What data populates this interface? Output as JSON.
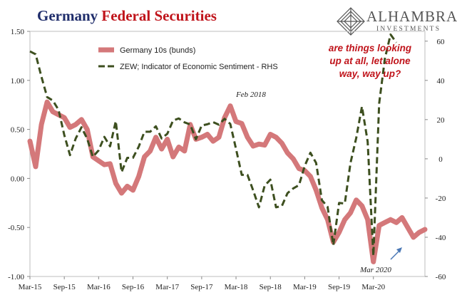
{
  "title": {
    "part1": "Germany",
    "part2": "Federal Securities"
  },
  "logo": {
    "name": "ALHAMBRA",
    "sub": "INVESTMENTS"
  },
  "colors": {
    "bunds": "#d4787a",
    "zew": "#3d4f1f",
    "title_navy": "#1f2d6b",
    "title_red": "#c0141b",
    "annotation_red": "#c0141b",
    "arrow_blue": "#4a78b5"
  },
  "annotations": {
    "feb2018": "Feb 2018",
    "mar2020": "Mar 2020",
    "question": [
      "are things looking",
      "up at all, let alone",
      "way, way up?"
    ]
  },
  "chart_data": {
    "type": "line",
    "title": "Germany Federal Securities",
    "x_tick_labels": [
      "Mar-15",
      "Sep-15",
      "Mar-16",
      "Sep-16",
      "Mar-17",
      "Sep-17",
      "Mar-18",
      "Sep-18",
      "Mar-19",
      "Sep-19",
      "Mar-20"
    ],
    "x_range": [
      "2015-03",
      "2020-12"
    ],
    "y_left": {
      "ylim": [
        -1.0,
        1.5
      ],
      "ticks": [
        "1.50",
        "1.00",
        "0.50",
        "0.00",
        "-0.50",
        "-1.00"
      ]
    },
    "y_right": {
      "ylim": [
        -60,
        65
      ],
      "ticks": [
        "60",
        "40",
        "20",
        "0",
        "-20",
        "-40",
        "-60"
      ]
    },
    "legend_placement": "top-left",
    "grid": false,
    "series": [
      {
        "name": "Germany 10s (bunds)",
        "axis": "left",
        "style": "solid-thick",
        "points": [
          [
            "2015-03",
            0.38
          ],
          [
            "2015-04",
            0.12
          ],
          [
            "2015-05",
            0.55
          ],
          [
            "2015-06",
            0.78
          ],
          [
            "2015-07",
            0.68
          ],
          [
            "2015-08",
            0.65
          ],
          [
            "2015-09",
            0.62
          ],
          [
            "2015-10",
            0.52
          ],
          [
            "2015-11",
            0.55
          ],
          [
            "2015-12",
            0.6
          ],
          [
            "2016-01",
            0.5
          ],
          [
            "2016-02",
            0.22
          ],
          [
            "2016-03",
            0.18
          ],
          [
            "2016-04",
            0.14
          ],
          [
            "2016-05",
            0.15
          ],
          [
            "2016-06",
            -0.05
          ],
          [
            "2016-07",
            -0.15
          ],
          [
            "2016-08",
            -0.08
          ],
          [
            "2016-09",
            -0.12
          ],
          [
            "2016-10",
            0.02
          ],
          [
            "2016-11",
            0.22
          ],
          [
            "2016-12",
            0.28
          ],
          [
            "2017-01",
            0.42
          ],
          [
            "2017-02",
            0.3
          ],
          [
            "2017-03",
            0.4
          ],
          [
            "2017-04",
            0.22
          ],
          [
            "2017-05",
            0.32
          ],
          [
            "2017-06",
            0.28
          ],
          [
            "2017-07",
            0.55
          ],
          [
            "2017-08",
            0.4
          ],
          [
            "2017-09",
            0.42
          ],
          [
            "2017-10",
            0.45
          ],
          [
            "2017-11",
            0.38
          ],
          [
            "2017-12",
            0.42
          ],
          [
            "2018-01",
            0.62
          ],
          [
            "2018-02",
            0.74
          ],
          [
            "2018-03",
            0.58
          ],
          [
            "2018-04",
            0.56
          ],
          [
            "2018-05",
            0.42
          ],
          [
            "2018-06",
            0.33
          ],
          [
            "2018-07",
            0.35
          ],
          [
            "2018-08",
            0.34
          ],
          [
            "2018-09",
            0.45
          ],
          [
            "2018-10",
            0.42
          ],
          [
            "2018-11",
            0.36
          ],
          [
            "2018-12",
            0.26
          ],
          [
            "2019-01",
            0.2
          ],
          [
            "2019-02",
            0.1
          ],
          [
            "2019-03",
            0.08
          ],
          [
            "2019-04",
            0.02
          ],
          [
            "2019-05",
            -0.12
          ],
          [
            "2019-06",
            -0.3
          ],
          [
            "2019-07",
            -0.42
          ],
          [
            "2019-08",
            -0.65
          ],
          [
            "2019-09",
            -0.55
          ],
          [
            "2019-10",
            -0.42
          ],
          [
            "2019-11",
            -0.35
          ],
          [
            "2019-12",
            -0.22
          ],
          [
            "2020-01",
            -0.28
          ],
          [
            "2020-02",
            -0.42
          ],
          [
            "2020-03",
            -0.85
          ],
          [
            "2020-04",
            -0.48
          ],
          [
            "2020-05",
            -0.45
          ],
          [
            "2020-06",
            -0.42
          ],
          [
            "2020-07",
            -0.45
          ],
          [
            "2020-08",
            -0.4
          ],
          [
            "2020-09",
            -0.5
          ],
          [
            "2020-10",
            -0.6
          ],
          [
            "2020-11",
            -0.55
          ],
          [
            "2020-12",
            -0.52
          ]
        ]
      },
      {
        "name": "ZEW; Indicator of Economic Sentiment - RHS",
        "axis": "right",
        "style": "dashed",
        "points": [
          [
            "2015-03",
            54.8
          ],
          [
            "2015-04",
            53.3
          ],
          [
            "2015-05",
            41.9
          ],
          [
            "2015-06",
            31.5
          ],
          [
            "2015-07",
            29.7
          ],
          [
            "2015-08",
            25.0
          ],
          [
            "2015-09",
            12.1
          ],
          [
            "2015-10",
            1.9
          ],
          [
            "2015-11",
            10.4
          ],
          [
            "2015-12",
            16.1
          ],
          [
            "2016-01",
            10.2
          ],
          [
            "2016-02",
            1.0
          ],
          [
            "2016-03",
            4.3
          ],
          [
            "2016-04",
            11.2
          ],
          [
            "2016-05",
            6.4
          ],
          [
            "2016-06",
            19.2
          ],
          [
            "2016-07",
            -6.8
          ],
          [
            "2016-08",
            0.5
          ],
          [
            "2016-09",
            0.5
          ],
          [
            "2016-10",
            6.2
          ],
          [
            "2016-11",
            13.8
          ],
          [
            "2016-12",
            13.8
          ],
          [
            "2017-01",
            16.6
          ],
          [
            "2017-02",
            10.4
          ],
          [
            "2017-03",
            12.8
          ],
          [
            "2017-04",
            19.5
          ],
          [
            "2017-05",
            20.6
          ],
          [
            "2017-06",
            18.6
          ],
          [
            "2017-07",
            17.5
          ],
          [
            "2017-08",
            10.0
          ],
          [
            "2017-09",
            17.0
          ],
          [
            "2017-10",
            17.6
          ],
          [
            "2017-11",
            18.7
          ],
          [
            "2017-12",
            17.4
          ],
          [
            "2018-01",
            20.4
          ],
          [
            "2018-02",
            17.8
          ],
          [
            "2018-03",
            5.1
          ],
          [
            "2018-04",
            -8.2
          ],
          [
            "2018-05",
            -8.2
          ],
          [
            "2018-06",
            -16.1
          ],
          [
            "2018-07",
            -24.7
          ],
          [
            "2018-08",
            -13.7
          ],
          [
            "2018-09",
            -10.6
          ],
          [
            "2018-10",
            -24.7
          ],
          [
            "2018-11",
            -24.1
          ],
          [
            "2018-12",
            -17.5
          ],
          [
            "2019-01",
            -15.1
          ],
          [
            "2019-02",
            -13.4
          ],
          [
            "2019-03",
            -3.6
          ],
          [
            "2019-04",
            3.1
          ],
          [
            "2019-05",
            -2.1
          ],
          [
            "2019-06",
            -21.1
          ],
          [
            "2019-07",
            -24.5
          ],
          [
            "2019-08",
            -44.1
          ],
          [
            "2019-09",
            -22.5
          ],
          [
            "2019-10",
            -22.8
          ],
          [
            "2019-11",
            -2.1
          ],
          [
            "2019-12",
            10.7
          ],
          [
            "2020-01",
            26.7
          ],
          [
            "2020-02",
            8.7
          ],
          [
            "2020-03",
            -49.5
          ],
          [
            "2020-04",
            28.2
          ],
          [
            "2020-05",
            51.0
          ],
          [
            "2020-06",
            63.4
          ],
          [
            "2020-07",
            59.3
          ]
        ]
      }
    ]
  }
}
